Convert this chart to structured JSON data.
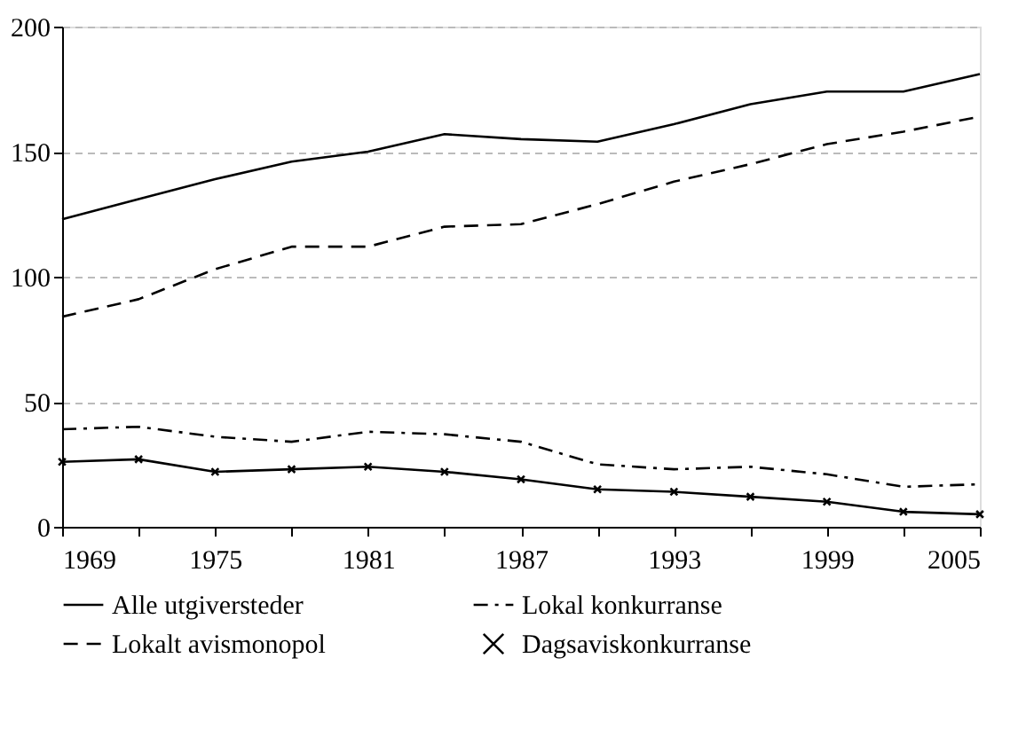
{
  "chart_data": {
    "type": "line",
    "x": [
      1969,
      1972,
      1975,
      1978,
      1981,
      1984,
      1987,
      1990,
      1993,
      1996,
      1999,
      2002,
      2005
    ],
    "xlim": [
      1969,
      2005
    ],
    "xticks": [
      1969,
      {
        "value": 1972,
        "label": null
      },
      1975,
      {
        "value": 1978,
        "label": null
      },
      1981,
      {
        "value": 1984,
        "label": null
      },
      1987,
      {
        "value": 1990,
        "label": null
      },
      1993,
      {
        "value": 1996,
        "label": null
      },
      1999,
      {
        "value": 2002,
        "label": null
      },
      2005
    ],
    "ylim": [
      0,
      200
    ],
    "yticks": [
      0,
      50,
      100,
      150,
      200
    ],
    "grid": "y",
    "legend": "bottom",
    "series": [
      {
        "name": "Alle utgiversteder",
        "color": "#000000",
        "line_style": "solid",
        "marker": "none",
        "values": [
          123,
          131,
          139,
          146,
          150,
          157,
          155,
          154,
          161,
          169,
          174,
          174,
          181
        ]
      },
      {
        "name": "Lokal konkurranse",
        "color": "#000000",
        "line_style": "dashdot",
        "marker": "none",
        "values": [
          39,
          40,
          36,
          34,
          38,
          37,
          34,
          25,
          23,
          24,
          21,
          16,
          17
        ]
      },
      {
        "name": "Lokalt avismonopol",
        "color": "#000000",
        "line_style": "dashed",
        "marker": "none",
        "values": [
          84,
          91,
          103,
          112,
          112,
          120,
          121,
          129,
          138,
          145,
          153,
          158,
          164
        ]
      },
      {
        "name": "Dagsaviskonkurranse",
        "color": "#000000",
        "line_style": "solid",
        "marker": "cross",
        "values": [
          26,
          27,
          22,
          23,
          24,
          22,
          19,
          15,
          14,
          12,
          10,
          6,
          5
        ]
      }
    ]
  }
}
